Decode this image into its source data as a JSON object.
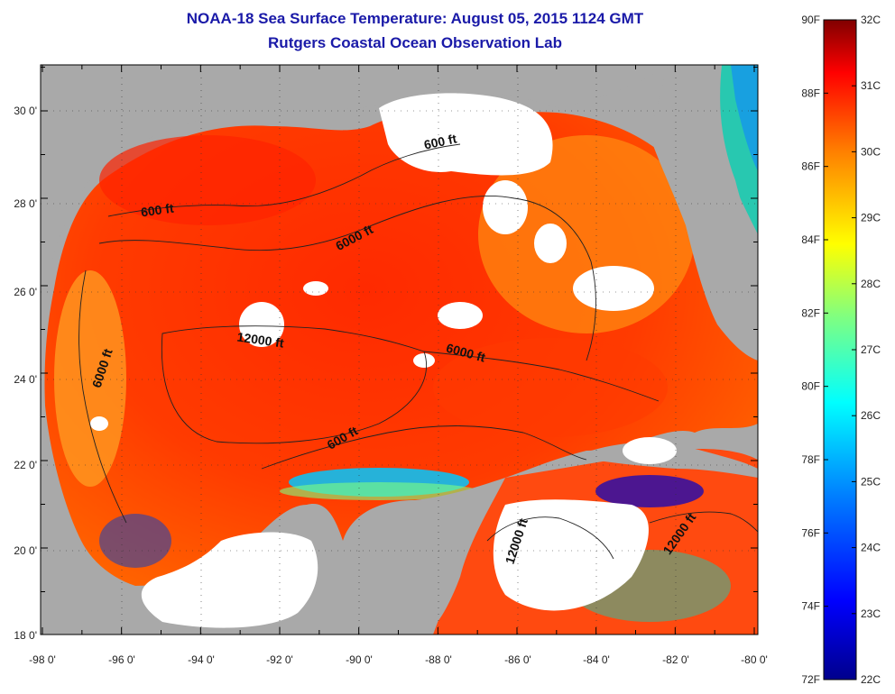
{
  "title": {
    "line1": "NOAA-18 Sea Surface Temperature:  August 05, 2015 1124 GMT",
    "line2": "Rutgers Coastal Ocean Observation Lab"
  },
  "map": {
    "lat_ticks": [
      "30 0'",
      "28 0'",
      "26 0'",
      "24 0'",
      "22 0'",
      "20 0'",
      "18 0'"
    ],
    "lon_ticks": [
      "-98 0'",
      "-96 0'",
      "-94 0'",
      "-92 0'",
      "-90 0'",
      "-88 0'",
      "-86 0'",
      "-84 0'",
      "-82 0'",
      "-80 0'"
    ],
    "contour_labels": [
      "600 ft",
      "6000 ft",
      "600 ft",
      "12000 ft",
      "6000 ft",
      "6000 ft",
      "600 ft",
      "12000 ft",
      "12000 ft"
    ],
    "colors": {
      "land": "#a9a9a9",
      "cloud": "#ffffff"
    }
  },
  "colorbar": {
    "fahrenheit": [
      "90F",
      "88F",
      "86F",
      "84F",
      "82F",
      "80F",
      "78F",
      "76F",
      "74F",
      "72F"
    ],
    "celsius": [
      "32C",
      "31C",
      "30C",
      "29C",
      "28C",
      "27C",
      "26C",
      "25C",
      "24C",
      "23C",
      "22C"
    ],
    "gradient": [
      "#00008c",
      "#0000ff",
      "#0080ff",
      "#00ffff",
      "#80ff80",
      "#ffff00",
      "#ff8000",
      "#ff0000",
      "#800000"
    ]
  }
}
